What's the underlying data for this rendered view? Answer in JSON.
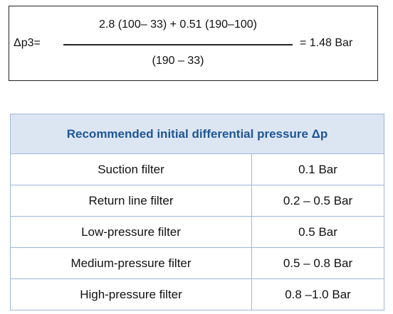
{
  "formula": {
    "label": "Δp3=",
    "numerator": "2.8 (100– 33) + 0.51 (190–100)",
    "denominator": "(190 – 33)",
    "result": "= 1.48 Bar"
  },
  "table": {
    "title": "Recommended initial differential pressure Δp",
    "rows": [
      [
        "Suction filter",
        "0.1 Bar"
      ],
      [
        "Return line filter",
        "0.2 – 0.5 Bar"
      ],
      [
        "Low-pressure filter",
        "0.5 Bar"
      ],
      [
        "Medium-pressure filter",
        "0.5 – 0.8 Bar"
      ],
      [
        "High-pressure filter",
        "0.8 –1.0 Bar"
      ]
    ]
  }
}
